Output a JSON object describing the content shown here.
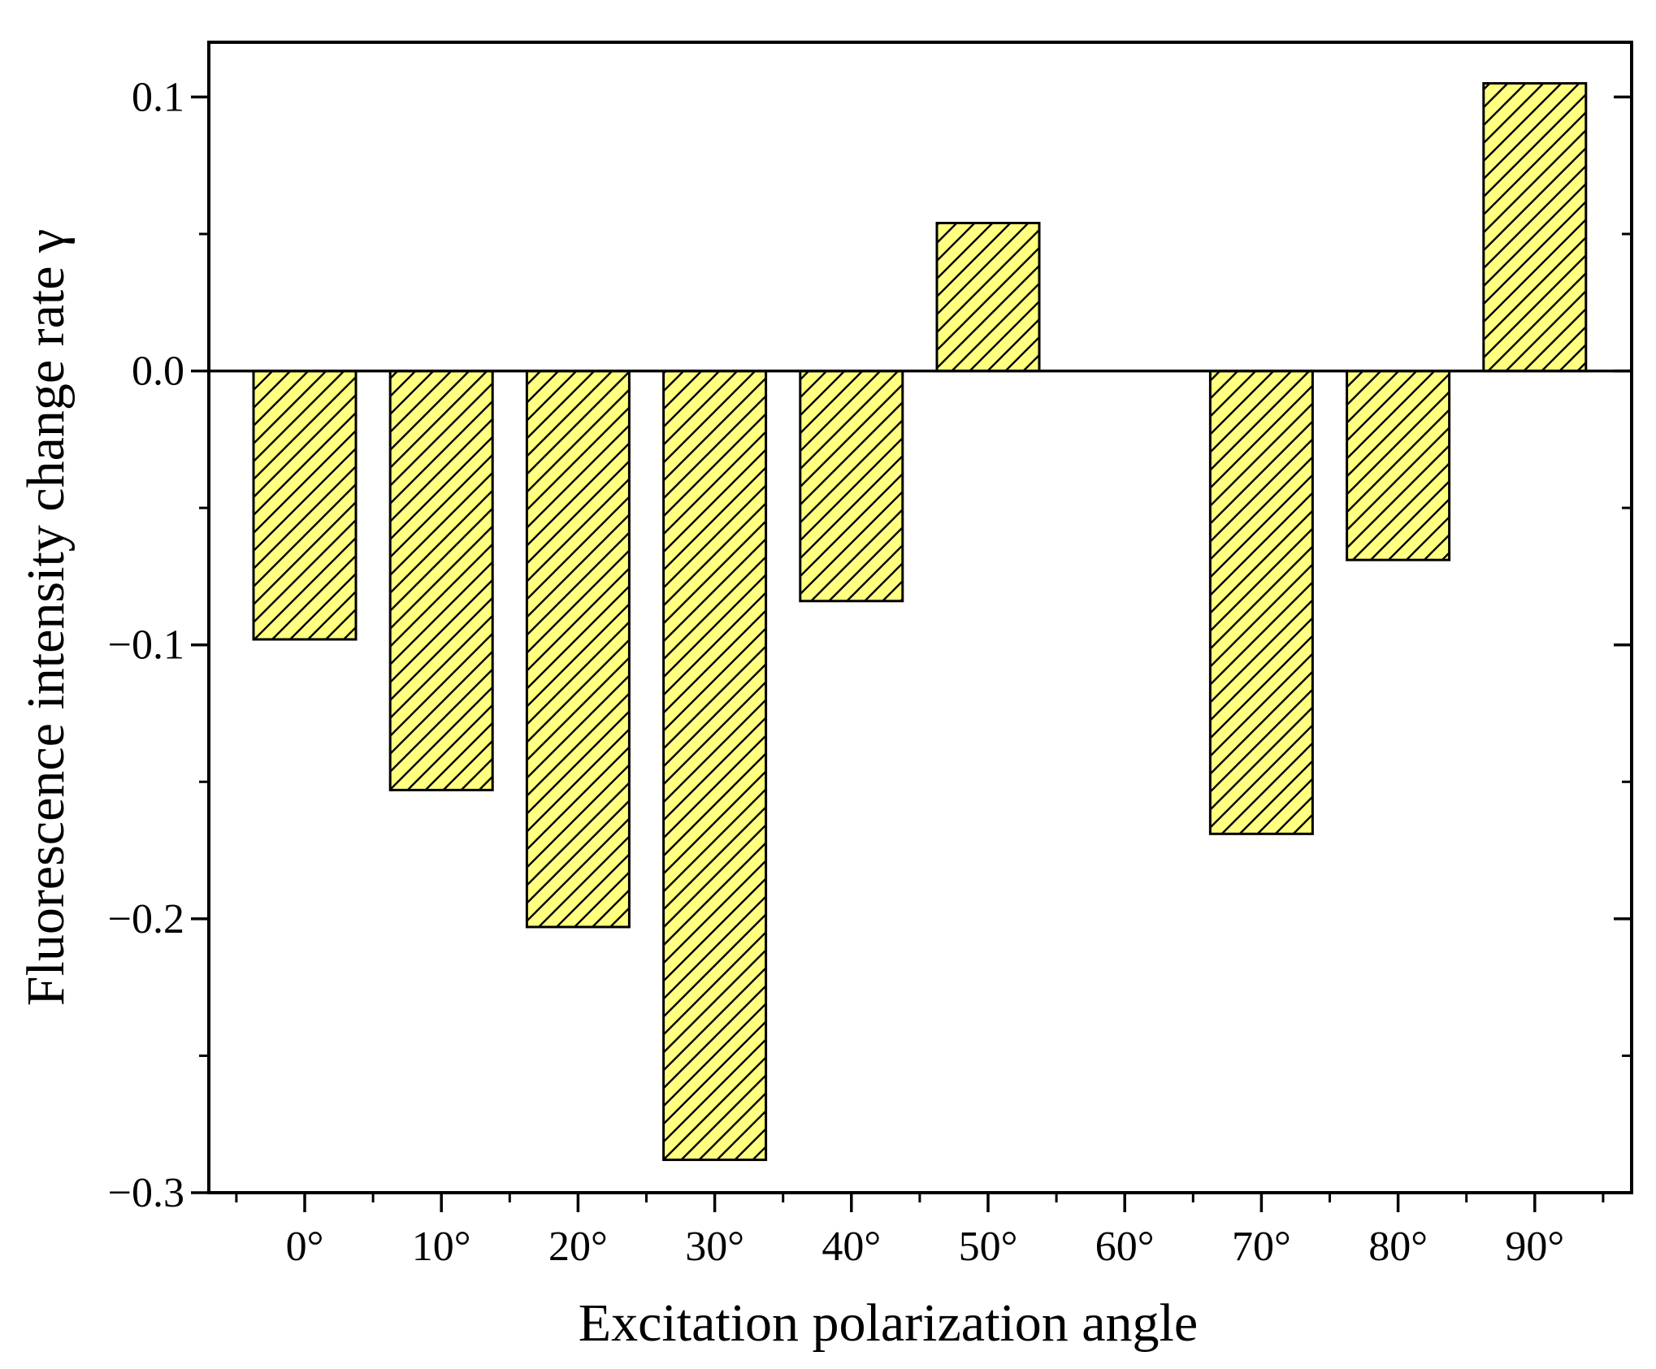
{
  "chart_data": {
    "type": "bar",
    "title": "",
    "xlabel": "Excitation polarization angle",
    "ylabel": "Fluorescence intensity change rate γ",
    "categories": [
      "0°",
      "10°",
      "20°",
      "30°",
      "40°",
      "50°",
      "60°",
      "70°",
      "80°",
      "90°"
    ],
    "values": [
      -0.098,
      -0.153,
      -0.203,
      -0.288,
      -0.084,
      0.054,
      0.0,
      -0.169,
      -0.069,
      0.105
    ],
    "ylim": [
      -0.3,
      0.12
    ],
    "yticks": [
      0.1,
      0.0,
      -0.1,
      -0.2,
      -0.3
    ],
    "ytick_labels": [
      "0.1",
      "0.0",
      "−0.1",
      "−0.2",
      "−0.3"
    ],
    "grid": false,
    "legend": "none",
    "bar_fill": "#ffff80",
    "bar_hatch": "diagonal",
    "bar_edge": "#000000"
  }
}
